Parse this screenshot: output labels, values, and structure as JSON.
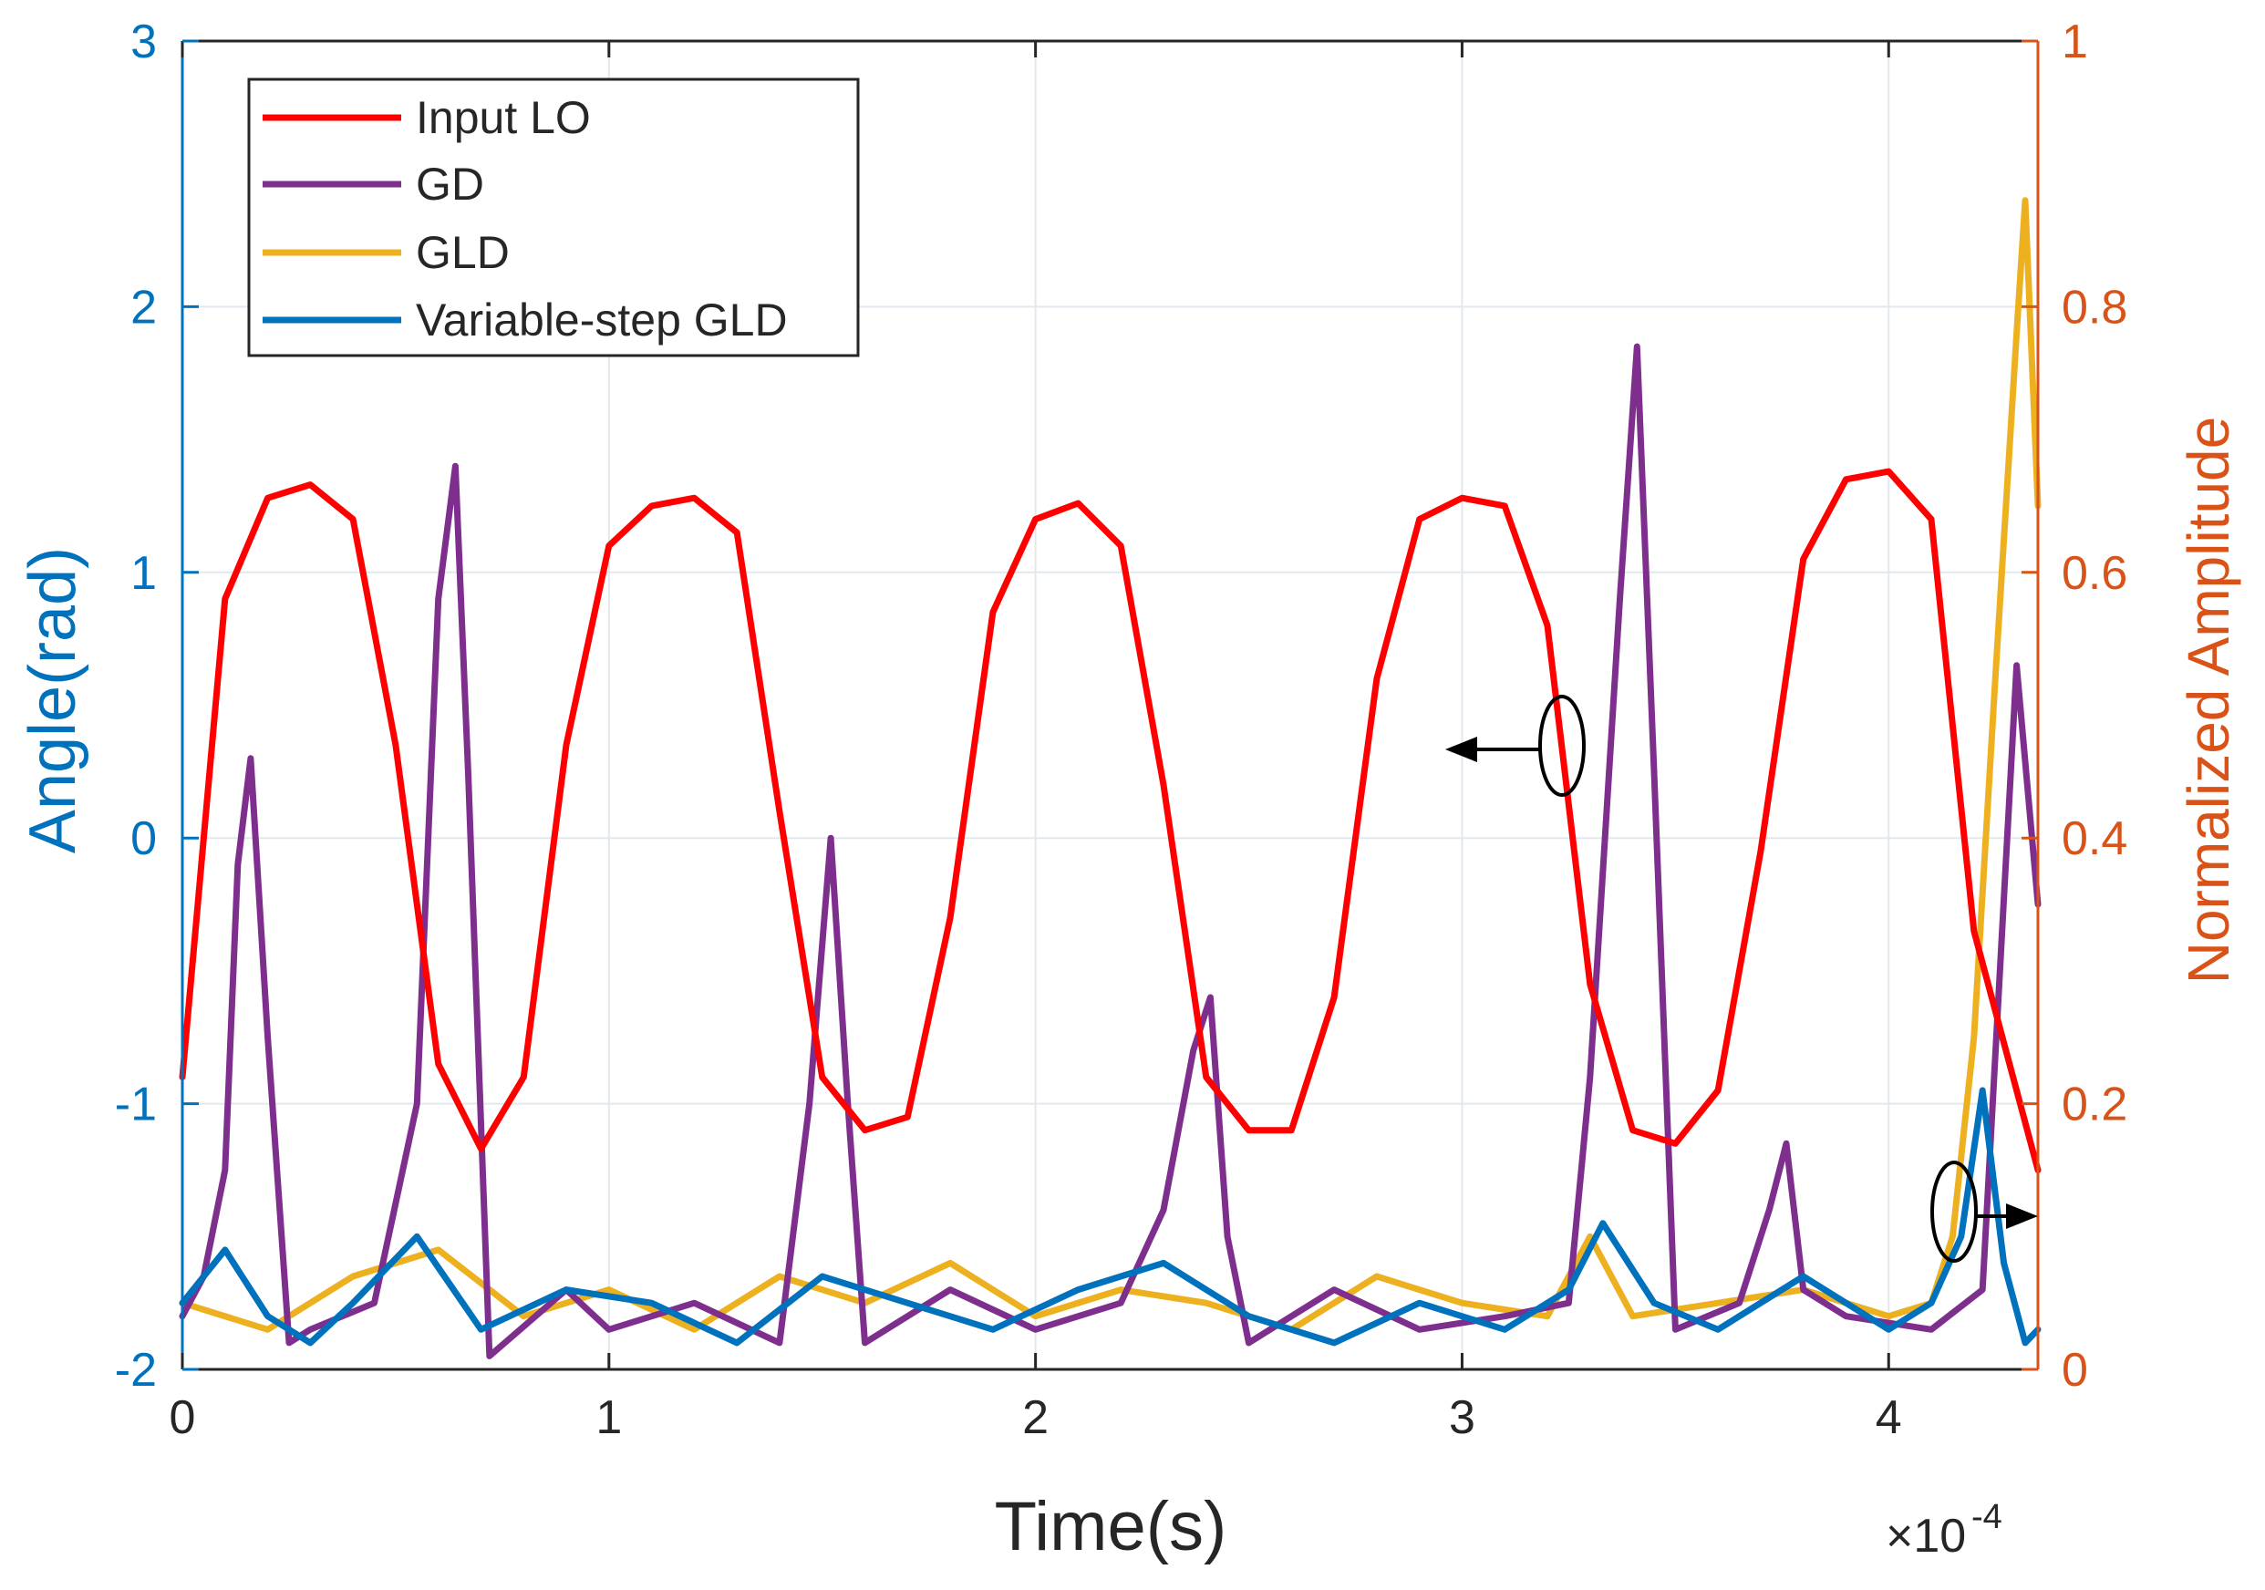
{
  "colors": {
    "input_lo": "#ff0000",
    "gd": "#7e2f8e",
    "gld": "#edb120",
    "vsgld": "#0072bd",
    "left_axis": "#0072bd",
    "right_axis": "#d95319",
    "grid": "#e2e8ee",
    "box": "#262626"
  },
  "chart_data": {
    "type": "line",
    "title": "",
    "xlabel": "Time(s)",
    "ylabel_left": "Angle(rad)",
    "ylabel_right": "Normalized Amplitude",
    "x_exponent_label": "×10",
    "x_exponent_power": "-4",
    "xlim": [
      0,
      4.35
    ],
    "ylim_left": [
      -2,
      3
    ],
    "ylim_right": [
      0,
      1
    ],
    "x_ticks": [
      0,
      1,
      2,
      3,
      4
    ],
    "x_tick_labels": [
      "0",
      "1",
      "2",
      "3",
      "4"
    ],
    "y_left_ticks": [
      -2,
      -1,
      0,
      1,
      2,
      3
    ],
    "y_left_tick_labels": [
      "-2",
      "-1",
      "0",
      "1",
      "2",
      "3"
    ],
    "y_right_ticks": [
      0,
      0.2,
      0.4,
      0.6,
      0.8,
      1
    ],
    "y_right_tick_labels": [
      "0",
      "0.2",
      "0.4",
      "0.6",
      "0.8",
      "1"
    ],
    "grid": true,
    "legend_position": "top-left",
    "x_units_note": "x values in units of 1e-4 s",
    "series": [
      {
        "name": "Input LO",
        "axis": "left",
        "x": [
          0,
          0.1,
          0.2,
          0.3,
          0.4,
          0.5,
          0.6,
          0.7,
          0.8,
          0.9,
          1.0,
          1.1,
          1.2,
          1.3,
          1.4,
          1.5,
          1.6,
          1.7,
          1.8,
          1.9,
          2.0,
          2.1,
          2.2,
          2.3,
          2.4,
          2.5,
          2.6,
          2.7,
          2.8,
          2.9,
          3.0,
          3.1,
          3.2,
          3.3,
          3.4,
          3.5,
          3.6,
          3.7,
          3.8,
          3.9,
          4.0,
          4.1,
          4.2,
          4.35
        ],
        "values": [
          -0.9,
          0.9,
          1.28,
          1.33,
          1.2,
          0.35,
          -0.85,
          -1.17,
          -0.9,
          0.35,
          1.1,
          1.25,
          1.28,
          1.15,
          0.1,
          -0.9,
          -1.1,
          -1.05,
          -0.3,
          0.85,
          1.2,
          1.26,
          1.1,
          0.2,
          -0.9,
          -1.1,
          -1.1,
          -0.6,
          0.6,
          1.2,
          1.28,
          1.25,
          0.8,
          -0.55,
          -1.1,
          -1.15,
          -0.95,
          -0.05,
          1.05,
          1.35,
          1.38,
          1.2,
          -0.35,
          -1.25
        ]
      },
      {
        "name": "GD",
        "axis": "right",
        "x": [
          0,
          0.05,
          0.1,
          0.13,
          0.16,
          0.2,
          0.25,
          0.3,
          0.45,
          0.55,
          0.6,
          0.64,
          0.67,
          0.72,
          0.9,
          1.0,
          1.2,
          1.4,
          1.47,
          1.52,
          1.56,
          1.6,
          1.8,
          2.0,
          2.2,
          2.3,
          2.37,
          2.41,
          2.45,
          2.5,
          2.7,
          2.9,
          3.1,
          3.25,
          3.3,
          3.37,
          3.41,
          3.45,
          3.5,
          3.65,
          3.72,
          3.76,
          3.8,
          3.9,
          4.1,
          4.22,
          4.3,
          4.35
        ],
        "values": [
          0.04,
          0.07,
          0.15,
          0.38,
          0.46,
          0.25,
          0.02,
          0.03,
          0.05,
          0.2,
          0.58,
          0.68,
          0.45,
          0.01,
          0.06,
          0.03,
          0.05,
          0.02,
          0.2,
          0.4,
          0.2,
          0.02,
          0.06,
          0.03,
          0.05,
          0.12,
          0.24,
          0.28,
          0.1,
          0.02,
          0.06,
          0.03,
          0.04,
          0.05,
          0.22,
          0.58,
          0.77,
          0.45,
          0.03,
          0.05,
          0.12,
          0.17,
          0.06,
          0.04,
          0.03,
          0.06,
          0.53,
          0.35
        ]
      },
      {
        "name": "GLD",
        "axis": "right",
        "x": [
          0,
          0.2,
          0.4,
          0.6,
          0.8,
          1.0,
          1.2,
          1.4,
          1.6,
          1.8,
          2.0,
          2.2,
          2.4,
          2.6,
          2.8,
          3.0,
          3.2,
          3.3,
          3.4,
          3.6,
          3.8,
          4.0,
          4.1,
          4.15,
          4.2,
          4.25,
          4.3,
          4.32,
          4.35
        ],
        "values": [
          0.05,
          0.03,
          0.07,
          0.09,
          0.04,
          0.06,
          0.03,
          0.07,
          0.05,
          0.08,
          0.04,
          0.06,
          0.05,
          0.03,
          0.07,
          0.05,
          0.04,
          0.1,
          0.04,
          0.05,
          0.06,
          0.04,
          0.05,
          0.1,
          0.25,
          0.52,
          0.78,
          0.88,
          0.65
        ]
      },
      {
        "name": "Variable-step GLD",
        "axis": "right",
        "x": [
          0,
          0.1,
          0.2,
          0.3,
          0.4,
          0.55,
          0.7,
          0.9,
          1.1,
          1.3,
          1.5,
          1.7,
          1.9,
          2.1,
          2.3,
          2.5,
          2.7,
          2.9,
          3.1,
          3.25,
          3.33,
          3.45,
          3.6,
          3.8,
          4.0,
          4.1,
          4.17,
          4.22,
          4.27,
          4.32,
          4.35
        ],
        "values": [
          0.05,
          0.09,
          0.04,
          0.02,
          0.05,
          0.1,
          0.03,
          0.06,
          0.05,
          0.02,
          0.07,
          0.05,
          0.03,
          0.06,
          0.08,
          0.04,
          0.02,
          0.05,
          0.03,
          0.06,
          0.11,
          0.05,
          0.03,
          0.07,
          0.03,
          0.05,
          0.1,
          0.21,
          0.08,
          0.02,
          0.03
        ]
      }
    ],
    "annotations": {
      "left_arrow": "points to left axis (Input LO)",
      "right_arrow": "points to right axis (GD, GLD, Variable-step GLD)"
    }
  }
}
